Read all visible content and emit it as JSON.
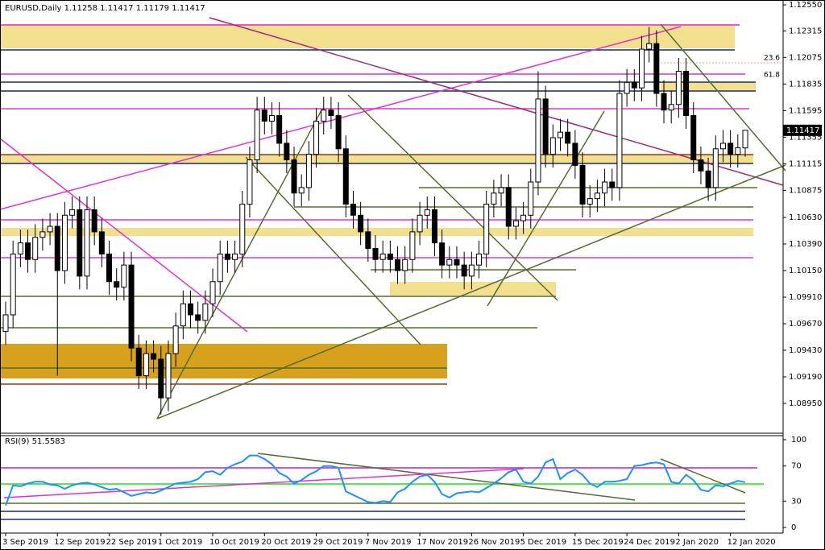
{
  "chart_data": [
    {
      "type": "candlestick",
      "title": "EURUSD,Daily",
      "subtitle": "1.11258 1.11417 1.11179 1.11417",
      "categories": [
        "3 Sep 2019",
        null,
        null,
        null,
        null,
        null,
        null,
        "12 Sep 2019",
        null,
        null,
        null,
        null,
        null,
        null,
        "22 Sep 2019",
        null,
        null,
        null,
        null,
        null,
        null,
        "1 Oct 2019",
        null,
        null,
        null,
        null,
        null,
        null,
        "10 Oct 2019",
        null,
        null,
        null,
        null,
        null,
        null,
        "20 Oct 2019",
        null,
        null,
        null,
        null,
        null,
        null,
        "29 Oct 2019",
        null,
        null,
        null,
        null,
        null,
        null,
        "7 Nov 2019",
        null,
        null,
        null,
        null,
        null,
        null,
        "17 Nov 2019",
        null,
        null,
        null,
        null,
        null,
        null,
        "26 Nov 2019",
        null,
        null,
        null,
        null,
        null,
        null,
        "5 Dec 2019",
        null,
        null,
        null,
        null,
        null,
        null,
        "15 Dec 2019",
        null,
        null,
        null,
        null,
        null,
        null,
        "24 Dec 2019",
        null,
        null,
        null,
        null,
        null,
        null,
        "2 Jan 2020",
        null,
        null,
        null,
        null,
        null,
        null,
        "12 Jan 2020",
        null,
        null
      ],
      "open": [
        1.096,
        1.0975,
        1.103,
        1.104,
        1.1025,
        1.1045,
        1.105,
        1.1055,
        1.1015,
        1.1065,
        1.107,
        1.101,
        1.107,
        1.105,
        1.103,
        1.1005,
        1.1,
        1.102,
        1.0945,
        1.092,
        1.094,
        1.0935,
        1.09,
        1.094,
        1.0965,
        1.0985,
        1.0975,
        1.097,
        1.0985,
        1.1005,
        1.103,
        1.1025,
        1.103,
        1.1075,
        1.1115,
        1.116,
        1.115,
        1.1155,
        1.113,
        1.1115,
        1.1085,
        1.109,
        1.112,
        1.115,
        1.116,
        1.1155,
        1.1125,
        1.1075,
        1.1065,
        1.105,
        1.1035,
        1.1025,
        1.103,
        1.1025,
        1.1015,
        1.1025,
        1.105,
        1.1065,
        1.107,
        1.104,
        1.102,
        1.1025,
        1.102,
        1.101,
        1.102,
        1.103,
        1.1075,
        1.1085,
        1.109,
        1.1055,
        1.106,
        1.1065,
        1.1095,
        1.117,
        1.112,
        1.1135,
        1.114,
        1.113,
        1.111,
        1.1075,
        1.108,
        1.1085,
        1.1095,
        1.109,
        1.1175,
        1.1185,
        1.118,
        1.1215,
        1.122,
        1.1175,
        1.116,
        1.1165,
        1.1195,
        1.1155,
        1.1115,
        1.1105,
        1.109,
        1.1125,
        1.113,
        1.112,
        1.11258
      ],
      "high": [
        1.0987,
        1.1042,
        1.1052,
        1.1052,
        1.1057,
        1.1062,
        1.1067,
        1.1067,
        1.1077,
        1.1082,
        1.1082,
        1.1082,
        1.1082,
        1.1062,
        1.1042,
        1.1017,
        1.1032,
        1.1032,
        1.0957,
        1.0952,
        1.0952,
        1.0947,
        1.0952,
        1.0977,
        1.0997,
        1.0997,
        1.0987,
        1.0997,
        1.1017,
        1.1042,
        1.1042,
        1.1042,
        1.1087,
        1.1127,
        1.1172,
        1.1172,
        1.1167,
        1.1167,
        1.1142,
        1.1127,
        1.1102,
        1.1132,
        1.1162,
        1.1172,
        1.1172,
        1.1167,
        1.1137,
        1.1087,
        1.1077,
        1.1062,
        1.1047,
        1.1042,
        1.1042,
        1.1037,
        1.1037,
        1.1062,
        1.1077,
        1.1082,
        1.1082,
        1.1052,
        1.1037,
        1.1037,
        1.1032,
        1.1032,
        1.1042,
        1.1087,
        1.1097,
        1.1102,
        1.1102,
        1.1072,
        1.1077,
        1.1107,
        1.1195,
        1.1182,
        1.1147,
        1.1152,
        1.1152,
        1.1142,
        1.1122,
        1.1092,
        1.1097,
        1.1107,
        1.1107,
        1.1187,
        1.1197,
        1.1197,
        1.1227,
        1.1235,
        1.1232,
        1.1187,
        1.1177,
        1.1207,
        1.1207,
        1.1167,
        1.1127,
        1.1117,
        1.1137,
        1.1142,
        1.1142,
        1.1138,
        1.11417
      ],
      "low": [
        1.0948,
        1.0963,
        1.1018,
        1.1013,
        1.1013,
        1.1033,
        1.1038,
        1.092,
        1.1003,
        1.1053,
        1.0998,
        1.0998,
        1.1038,
        1.1018,
        1.0993,
        1.0988,
        1.0988,
        1.0933,
        1.0908,
        1.0908,
        1.0923,
        1.0885,
        1.0888,
        1.0928,
        1.0953,
        1.0963,
        1.0958,
        1.0958,
        1.0973,
        1.0993,
        1.1013,
        1.1013,
        1.1018,
        1.1063,
        1.1103,
        1.1138,
        1.1138,
        1.1118,
        1.1103,
        1.1073,
        1.1073,
        1.1078,
        1.1108,
        1.1138,
        1.1143,
        1.1113,
        1.1063,
        1.1053,
        1.1038,
        1.1023,
        1.1013,
        1.1013,
        1.1013,
        1.1003,
        1.1003,
        1.1013,
        1.1038,
        1.1053,
        1.1028,
        1.1008,
        1.1008,
        1.1008,
        1.0998,
        1.0998,
        1.1008,
        1.1018,
        1.1063,
        1.1073,
        1.1043,
        1.1043,
        1.1048,
        1.1053,
        1.1083,
        1.1108,
        1.1108,
        1.1123,
        1.1118,
        1.1098,
        1.1063,
        1.1063,
        1.1068,
        1.1073,
        1.1078,
        1.1078,
        1.1163,
        1.1168,
        1.1168,
        1.1203,
        1.1163,
        1.1148,
        1.1148,
        1.1153,
        1.1143,
        1.1103,
        1.1093,
        1.1078,
        1.1078,
        1.1113,
        1.1108,
        1.1108,
        1.11179
      ],
      "close": [
        1.0975,
        1.103,
        1.104,
        1.1025,
        1.1045,
        1.105,
        1.1055,
        1.1015,
        1.1065,
        1.107,
        1.101,
        1.107,
        1.105,
        1.103,
        1.1005,
        1.1,
        1.102,
        1.0945,
        1.092,
        1.094,
        1.0935,
        1.09,
        1.094,
        1.0965,
        1.0985,
        1.0975,
        1.097,
        1.0985,
        1.1005,
        1.103,
        1.1025,
        1.103,
        1.1075,
        1.1115,
        1.116,
        1.115,
        1.1155,
        1.113,
        1.1115,
        1.1085,
        1.109,
        1.112,
        1.115,
        1.116,
        1.1155,
        1.1125,
        1.1075,
        1.1065,
        1.105,
        1.1035,
        1.1025,
        1.103,
        1.1025,
        1.1015,
        1.1025,
        1.105,
        1.1065,
        1.107,
        1.104,
        1.102,
        1.1025,
        1.102,
        1.101,
        1.102,
        1.103,
        1.1075,
        1.1085,
        1.109,
        1.1055,
        1.106,
        1.1065,
        1.1095,
        1.117,
        1.112,
        1.1135,
        1.114,
        1.113,
        1.111,
        1.1075,
        1.108,
        1.1085,
        1.1095,
        1.109,
        1.1175,
        1.1185,
        1.118,
        1.1215,
        1.122,
        1.1175,
        1.116,
        1.1165,
        1.1195,
        1.1155,
        1.1115,
        1.1105,
        1.109,
        1.1125,
        1.113,
        1.112,
        1.1126,
        1.11417
      ],
      "last_price": 1.11417,
      "annotations": [
        "23.6",
        "61.8"
      ],
      "ylim": [
        1.08688,
        1.12594
      ],
      "yticks": [
        {
          "value": 1.1255,
          "label": "1.12550"
        },
        1.12315,
        1.12075,
        1.11835,
        1.11595,
        1.11355,
        1.11115,
        1.10875,
        {
          "value": 1.1063,
          "label": "1.10630"
        },
        {
          "value": 1.1039,
          "label": "1.10390"
        },
        {
          "value": 1.1015,
          "label": "1.10150"
        },
        {
          "value": 1.0991,
          "label": "1.09910"
        },
        {
          "value": 1.0967,
          "label": "1.09670"
        },
        {
          "value": 1.0943,
          "label": "1.09430"
        },
        {
          "value": 1.0919,
          "label": "1.09190"
        },
        {
          "value": 1.0895,
          "label": "1.08950"
        }
      ],
      "colors": {
        "up": "#ffffff",
        "down": "#000000",
        "wick": "#000000"
      }
    },
    {
      "type": "line",
      "title": "RSI(9)",
      "last_value": 51.5583,
      "color": "#1e90ff",
      "values": [
        25,
        48,
        47,
        50,
        52,
        52,
        49,
        48,
        44,
        48,
        50,
        51,
        49,
        46,
        43,
        44,
        40,
        36,
        38,
        40,
        39,
        42,
        46,
        50,
        51,
        52,
        55,
        63,
        64,
        60,
        68,
        72,
        75,
        82,
        82,
        78,
        72,
        62,
        58,
        50,
        54,
        60,
        64,
        70,
        70,
        68,
        41,
        37,
        33,
        29,
        28,
        30,
        29,
        40,
        44,
        52,
        58,
        60,
        52,
        38,
        34,
        39,
        40,
        41,
        40,
        45,
        50,
        56,
        63,
        66,
        52,
        50,
        58,
        74,
        78,
        55,
        62,
        66,
        60,
        50,
        46,
        52,
        52,
        53,
        55,
        70,
        71,
        73,
        74,
        72,
        52,
        50,
        60,
        54,
        43,
        41,
        48,
        47,
        50,
        53,
        51.5583
      ],
      "ylim": [
        0,
        100
      ],
      "yticks": [
        0,
        30,
        70,
        100
      ]
    }
  ]
}
